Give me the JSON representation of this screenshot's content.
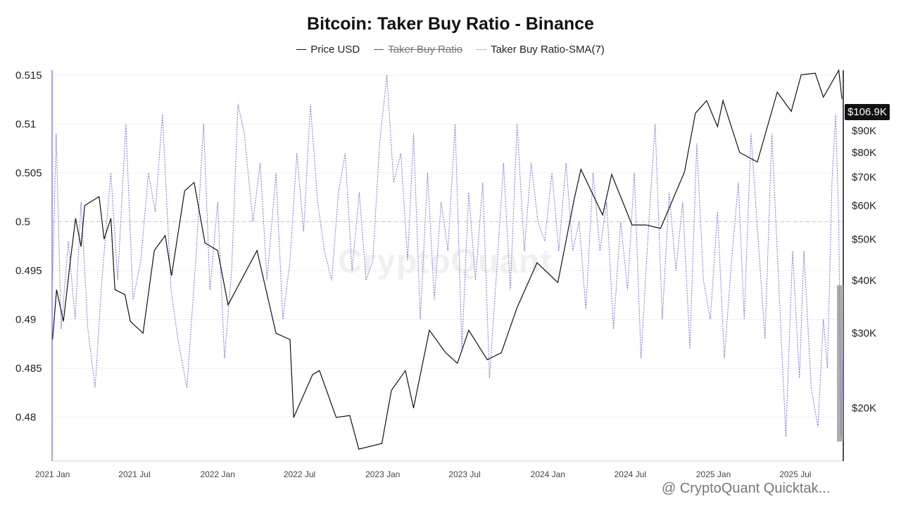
{
  "chart_data": {
    "type": "line",
    "title": "Bitcoin: Taker Buy Ratio - Binance",
    "legend": [
      {
        "label": "Price USD",
        "style": "solid",
        "color": "#111111",
        "hidden": false
      },
      {
        "label": "Taker Buy Ratio",
        "style": "solid",
        "color": "#555555",
        "hidden": true
      },
      {
        "label": "Taker Buy Ratio-SMA(7)",
        "style": "dotted",
        "color": "#7b6fe0",
        "hidden": false
      }
    ],
    "x_ticks": [
      "2021 Jan",
      "2021 Jul",
      "2022 Jan",
      "2022 Jul",
      "2023 Jan",
      "2023 Jul",
      "2024 Jan",
      "2024 Jul",
      "2025 Jan",
      "2025 Jul"
    ],
    "x_range": [
      "2020-12-31",
      "2025-10-15"
    ],
    "left_axis": {
      "ticks": [
        "0.515",
        "0.51",
        "0.505",
        "0.5",
        "0.495",
        "0.49",
        "0.485",
        "0.48"
      ],
      "range": [
        0.4755,
        0.5155
      ],
      "reference": 0.5
    },
    "right_axis": {
      "scale": "log",
      "ticks": [
        "$100K",
        "$90K",
        "$80K",
        "$70K",
        "$60K",
        "$50K",
        "$40K",
        "$30K",
        "$20K"
      ],
      "range": [
        15000,
        125000
      ]
    },
    "price_label": "$106.9K",
    "price_series": [
      [
        "2021-01-01",
        29000
      ],
      [
        "2021-01-10",
        38000
      ],
      [
        "2021-01-25",
        32000
      ],
      [
        "2021-02-10",
        45000
      ],
      [
        "2021-02-21",
        56000
      ],
      [
        "2021-03-05",
        48000
      ],
      [
        "2021-03-13",
        60000
      ],
      [
        "2021-04-14",
        63000
      ],
      [
        "2021-04-25",
        50000
      ],
      [
        "2021-05-10",
        56000
      ],
      [
        "2021-05-19",
        38000
      ],
      [
        "2021-06-10",
        37000
      ],
      [
        "2021-06-22",
        32000
      ],
      [
        "2021-07-20",
        30000
      ],
      [
        "2021-08-14",
        47000
      ],
      [
        "2021-09-07",
        51000
      ],
      [
        "2021-09-21",
        41000
      ],
      [
        "2021-10-20",
        65000
      ],
      [
        "2021-11-10",
        68000
      ],
      [
        "2021-12-04",
        49000
      ],
      [
        "2022-01-01",
        47000
      ],
      [
        "2022-01-24",
        35000
      ],
      [
        "2022-03-29",
        47000
      ],
      [
        "2022-05-10",
        30000
      ],
      [
        "2022-06-10",
        29000
      ],
      [
        "2022-06-18",
        19000
      ],
      [
        "2022-07-30",
        24000
      ],
      [
        "2022-08-14",
        24500
      ],
      [
        "2022-09-20",
        19000
      ],
      [
        "2022-10-20",
        19200
      ],
      [
        "2022-11-09",
        16000
      ],
      [
        "2022-12-30",
        16500
      ],
      [
        "2023-01-20",
        22000
      ],
      [
        "2023-02-20",
        24500
      ],
      [
        "2023-03-10",
        20000
      ],
      [
        "2023-04-14",
        30500
      ],
      [
        "2023-05-20",
        27000
      ],
      [
        "2023-06-15",
        25500
      ],
      [
        "2023-07-10",
        30500
      ],
      [
        "2023-08-20",
        26000
      ],
      [
        "2023-09-20",
        27000
      ],
      [
        "2023-10-25",
        34500
      ],
      [
        "2023-12-08",
        44000
      ],
      [
        "2024-01-23",
        39500
      ],
      [
        "2024-02-28",
        62000
      ],
      [
        "2024-03-14",
        73000
      ],
      [
        "2024-05-01",
        57000
      ],
      [
        "2024-05-21",
        71000
      ],
      [
        "2024-07-05",
        54000
      ],
      [
        "2024-08-05",
        54000
      ],
      [
        "2024-09-06",
        53000
      ],
      [
        "2024-10-29",
        72000
      ],
      [
        "2024-11-22",
        99000
      ],
      [
        "2024-12-17",
        106000
      ],
      [
        "2025-01-10",
        92000
      ],
      [
        "2025-01-22",
        106000
      ],
      [
        "2025-02-28",
        80000
      ],
      [
        "2025-04-08",
        76000
      ],
      [
        "2025-05-22",
        111000
      ],
      [
        "2025-06-22",
        100000
      ],
      [
        "2025-07-14",
        122000
      ],
      [
        "2025-08-14",
        123000
      ],
      [
        "2025-09-01",
        108000
      ],
      [
        "2025-10-05",
        125000
      ],
      [
        "2025-10-12",
        107000
      ]
    ],
    "sma_series": [
      [
        "2021-01-01",
        0.494
      ],
      [
        "2021-01-09",
        0.509
      ],
      [
        "2021-01-20",
        0.489
      ],
      [
        "2021-02-05",
        0.498
      ],
      [
        "2021-02-20",
        0.49
      ],
      [
        "2021-03-05",
        0.502
      ],
      [
        "2021-03-20",
        0.489
      ],
      [
        "2021-04-05",
        0.483
      ],
      [
        "2021-04-20",
        0.494
      ],
      [
        "2021-05-10",
        0.505
      ],
      [
        "2021-05-25",
        0.494
      ],
      [
        "2021-06-12",
        0.51
      ],
      [
        "2021-06-28",
        0.492
      ],
      [
        "2021-07-15",
        0.496
      ],
      [
        "2021-08-01",
        0.505
      ],
      [
        "2021-08-16",
        0.501
      ],
      [
        "2021-09-01",
        0.511
      ],
      [
        "2021-09-20",
        0.493
      ],
      [
        "2021-10-05",
        0.488
      ],
      [
        "2021-10-25",
        0.483
      ],
      [
        "2021-11-15",
        0.497
      ],
      [
        "2021-12-01",
        0.51
      ],
      [
        "2021-12-15",
        0.493
      ],
      [
        "2022-01-01",
        0.502
      ],
      [
        "2022-01-16",
        0.486
      ],
      [
        "2022-02-01",
        0.495
      ],
      [
        "2022-02-15",
        0.512
      ],
      [
        "2022-03-01",
        0.509
      ],
      [
        "2022-03-20",
        0.5
      ],
      [
        "2022-04-05",
        0.506
      ],
      [
        "2022-04-20",
        0.494
      ],
      [
        "2022-05-10",
        0.505
      ],
      [
        "2022-05-25",
        0.49
      ],
      [
        "2022-06-10",
        0.496
      ],
      [
        "2022-06-25",
        0.507
      ],
      [
        "2022-07-10",
        0.499
      ],
      [
        "2022-07-25",
        0.512
      ],
      [
        "2022-08-10",
        0.502
      ],
      [
        "2022-08-25",
        0.497
      ],
      [
        "2022-09-10",
        0.494
      ],
      [
        "2022-09-25",
        0.503
      ],
      [
        "2022-10-10",
        0.507
      ],
      [
        "2022-10-25",
        0.495
      ],
      [
        "2022-11-10",
        0.503
      ],
      [
        "2022-11-25",
        0.494
      ],
      [
        "2022-12-10",
        0.496
      ],
      [
        "2022-12-25",
        0.508
      ],
      [
        "2023-01-10",
        0.515
      ],
      [
        "2023-01-25",
        0.504
      ],
      [
        "2023-02-10",
        0.507
      ],
      [
        "2023-02-25",
        0.496
      ],
      [
        "2023-03-10",
        0.509
      ],
      [
        "2023-03-25",
        0.49
      ],
      [
        "2023-04-10",
        0.505
      ],
      [
        "2023-04-25",
        0.492
      ],
      [
        "2023-05-10",
        0.502
      ],
      [
        "2023-05-25",
        0.497
      ],
      [
        "2023-06-10",
        0.51
      ],
      [
        "2023-06-25",
        0.487
      ],
      [
        "2023-07-10",
        0.503
      ],
      [
        "2023-07-25",
        0.494
      ],
      [
        "2023-08-10",
        0.504
      ],
      [
        "2023-08-25",
        0.484
      ],
      [
        "2023-09-10",
        0.495
      ],
      [
        "2023-09-25",
        0.506
      ],
      [
        "2023-10-10",
        0.493
      ],
      [
        "2023-10-25",
        0.51
      ],
      [
        "2023-11-10",
        0.497
      ],
      [
        "2023-11-25",
        0.506
      ],
      [
        "2023-12-10",
        0.5
      ],
      [
        "2023-12-25",
        0.498
      ],
      [
        "2024-01-10",
        0.505
      ],
      [
        "2024-01-25",
        0.497
      ],
      [
        "2024-02-10",
        0.506
      ],
      [
        "2024-02-25",
        0.497
      ],
      [
        "2024-03-10",
        0.5
      ],
      [
        "2024-03-25",
        0.491
      ],
      [
        "2024-04-10",
        0.505
      ],
      [
        "2024-04-25",
        0.497
      ],
      [
        "2024-05-10",
        0.502
      ],
      [
        "2024-05-25",
        0.489
      ],
      [
        "2024-06-10",
        0.5
      ],
      [
        "2024-06-25",
        0.493
      ],
      [
        "2024-07-10",
        0.505
      ],
      [
        "2024-07-25",
        0.486
      ],
      [
        "2024-08-10",
        0.499
      ],
      [
        "2024-08-25",
        0.51
      ],
      [
        "2024-09-10",
        0.49
      ],
      [
        "2024-09-25",
        0.503
      ],
      [
        "2024-10-10",
        0.495
      ],
      [
        "2024-10-25",
        0.502
      ],
      [
        "2024-11-10",
        0.487
      ],
      [
        "2024-11-25",
        0.508
      ],
      [
        "2024-12-10",
        0.494
      ],
      [
        "2024-12-25",
        0.49
      ],
      [
        "2025-01-10",
        0.501
      ],
      [
        "2025-01-25",
        0.486
      ],
      [
        "2025-02-10",
        0.496
      ],
      [
        "2025-02-25",
        0.504
      ],
      [
        "2025-03-10",
        0.49
      ],
      [
        "2025-03-25",
        0.509
      ],
      [
        "2025-04-10",
        0.498
      ],
      [
        "2025-04-25",
        0.488
      ],
      [
        "2025-05-10",
        0.509
      ],
      [
        "2025-05-25",
        0.494
      ],
      [
        "2025-06-10",
        0.478
      ],
      [
        "2025-06-25",
        0.497
      ],
      [
        "2025-07-10",
        0.484
      ],
      [
        "2025-07-20",
        0.497
      ],
      [
        "2025-08-05",
        0.483
      ],
      [
        "2025-08-20",
        0.479
      ],
      [
        "2025-09-01",
        0.49
      ],
      [
        "2025-09-10",
        0.485
      ],
      [
        "2025-09-20",
        0.504
      ],
      [
        "2025-09-28",
        0.511
      ],
      [
        "2025-10-05",
        0.5
      ],
      [
        "2025-10-10",
        0.478
      ],
      [
        "2025-10-14",
        0.486
      ]
    ],
    "highlight": {
      "from_date": "2025-10-01",
      "to_date": "2025-10-15",
      "ratio_from": 0.4775,
      "ratio_to": 0.4935
    }
  },
  "watermark": "CryptoQuant",
  "credit": "@ CryptoQuant Quicktak..."
}
